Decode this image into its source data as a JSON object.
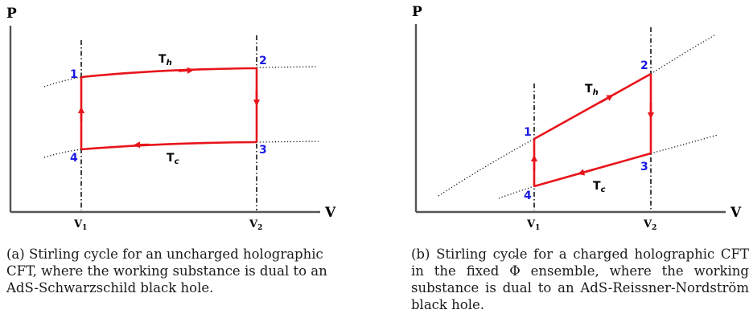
{
  "panels": [
    {
      "id": "a",
      "y_axis_label": "P",
      "x_axis_label": "V",
      "v1_label": "V",
      "v1_sub": "1",
      "v2_label": "V",
      "v2_sub": "2",
      "hot_label": "T",
      "hot_sub": "h",
      "cold_label": "T",
      "cold_sub": "c",
      "points": [
        "1",
        "2",
        "3",
        "4"
      ]
    },
    {
      "id": "b",
      "y_axis_label": "P",
      "x_axis_label": "V",
      "v1_label": "V",
      "v1_sub": "1",
      "v2_label": "V",
      "v2_sub": "2",
      "hot_label": "T",
      "hot_sub": "h",
      "cold_label": "T",
      "cold_sub": "c",
      "points": [
        "1",
        "2",
        "3",
        "4"
      ]
    }
  ],
  "captions": {
    "a": "(a) Stirling cycle for an uncharged holographic CFT, where the working substance is dual to an AdS-Schwarzschild black hole.",
    "b_before": "(b) Stirling cycle for a charged holographic CFT in the fixed ",
    "b_symbol": "Φ",
    "b_tilde": "˜",
    "b_after": " ensemble, where the working substance is dual to an AdS-Reissner-Nordström black hole."
  },
  "colors": {
    "cycle": "#e8141b",
    "point_label": "#1a1ae6",
    "axis": "#555555",
    "dashed": "#111111"
  }
}
